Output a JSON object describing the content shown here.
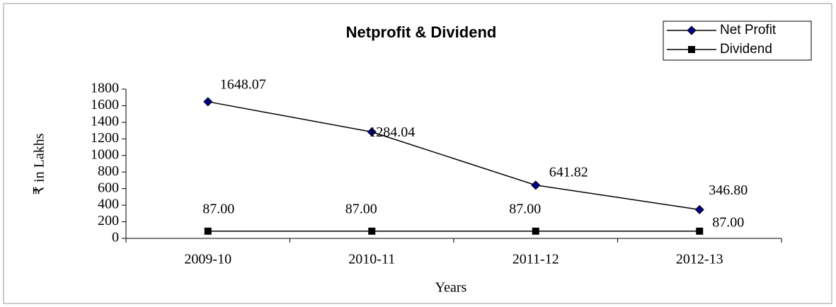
{
  "chart_data": {
    "type": "line",
    "title": "Netprofit & Dividend",
    "x_label": "Years",
    "y_label": "₹ in Lakhs",
    "categories": [
      "2009-10",
      "2010-11",
      "2011-12",
      "2012-13"
    ],
    "series": [
      {
        "name": "Net Profit",
        "color": "#000080",
        "values": [
          1648.07,
          1284.04,
          641.82,
          346.8
        ],
        "value_labels": [
          "1648.07",
          "1284.04",
          "641.82",
          "346.80"
        ]
      },
      {
        "name": "Dividend",
        "color": "#000000",
        "values": [
          87,
          87,
          87,
          87
        ],
        "value_labels": [
          "87.00",
          "87.00",
          "87.00",
          "87.00"
        ]
      }
    ],
    "ylim": [
      0,
      1800
    ],
    "yticks": [
      0,
      200,
      400,
      600,
      800,
      1000,
      1200,
      1400,
      1600,
      1800
    ],
    "grid": false,
    "legend": "upper right"
  }
}
